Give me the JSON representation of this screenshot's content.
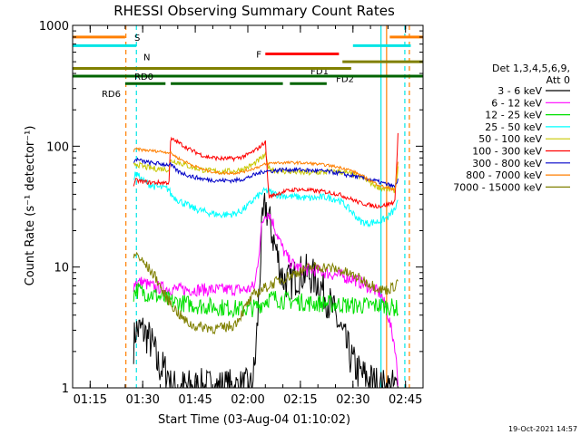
{
  "chart_data": {
    "type": "line",
    "title": "RHESSI Observing Summary Count Rates",
    "xlabel": "Start Time (03-Aug-04 01:10:02)",
    "ylabel": "Count Rate (s⁻¹ detector⁻¹)",
    "y_scale": "log",
    "ylim": [
      1,
      1000
    ],
    "xlim_minutes_after_0110": [
      0,
      100
    ],
    "x_tick_labels": [
      "01:15",
      "01:30",
      "01:45",
      "02:00",
      "02:15",
      "02:30",
      "02:45"
    ],
    "x_tick_minutes_after_0110": [
      5,
      20,
      35,
      50,
      65,
      80,
      95
    ],
    "y_tick_labels": [
      "1",
      "10",
      "100",
      "1000"
    ],
    "y_tick_values": [
      1,
      10,
      100,
      1000
    ],
    "grid": false,
    "legend_position": "right",
    "legend_header": [
      "Det 1,3,4,5,6,9,",
      "Att 0"
    ],
    "footer_date": "19-Oct-2021 14:57",
    "vertical_lines": [
      {
        "x": 15.2,
        "color": "#ff7f00",
        "style": "dashed"
      },
      {
        "x": 18.2,
        "color": "#00e5e5",
        "style": "dashed"
      },
      {
        "x": 88.0,
        "color": "#00e5e5",
        "style": "solid"
      },
      {
        "x": 89.6,
        "color": "#ff7f00",
        "style": "solid"
      },
      {
        "x": 96.1,
        "color": "#ff7f00",
        "style": "dashed"
      },
      {
        "x": 94.8,
        "color": "#00e5e5",
        "style": "dashed"
      }
    ],
    "flag_bars": [
      {
        "label": "S",
        "color": "#ff7f00",
        "y": 800,
        "segments": [
          [
            0,
            15.0
          ],
          [
            90.5,
            100
          ]
        ]
      },
      {
        "label": "N",
        "color": "#00e5e5",
        "y": 680,
        "segments": [
          [
            0,
            18.2
          ],
          [
            80.0,
            96.5
          ]
        ]
      },
      {
        "label": "F",
        "color": "#ff0000",
        "y": 580,
        "segments": [
          [
            55.0,
            76.0
          ]
        ]
      },
      {
        "label": "FD1",
        "color": "#808000",
        "y": 500,
        "segments": [
          [
            77.0,
            100
          ]
        ]
      },
      {
        "label": "FD2",
        "color": "#808000",
        "y": 440,
        "segments": [
          [
            0,
            79.5
          ]
        ]
      },
      {
        "label": "RD0",
        "color": "#006400",
        "y": 380,
        "segments": [
          [
            0,
            100
          ]
        ]
      },
      {
        "label": "RD6",
        "color": "#006400",
        "y": 330,
        "segments": [
          [
            15.0,
            26.5
          ],
          [
            28.0,
            60.0
          ],
          [
            62.0,
            72.5
          ]
        ]
      }
    ],
    "gaps": [
      [
        0,
        17.4
      ],
      [
        93.5,
        100
      ]
    ],
    "series": [
      {
        "name": "3 - 6 keV",
        "color": "#000000",
        "x": [
          17.4,
          18,
          20,
          22,
          23.5,
          24,
          26,
          27.5,
          28,
          30,
          31,
          32,
          33,
          34,
          35,
          36,
          38,
          40,
          42,
          44,
          46,
          47,
          48,
          49,
          50,
          51,
          52,
          53,
          54,
          55,
          56,
          58,
          60,
          62,
          64,
          66,
          68,
          70,
          72,
          74,
          76,
          78,
          80,
          82,
          84,
          86,
          88,
          90,
          91,
          92,
          93
        ],
        "values": [
          2.3,
          3,
          3,
          2.5,
          2.0,
          1.6,
          1.4,
          1.3,
          1.0,
          1.0,
          1.0,
          1.0,
          1.0,
          1.0,
          1.0,
          1.0,
          1.0,
          1.0,
          1.0,
          1.0,
          1.0,
          1.0,
          1.0,
          1.0,
          1.0,
          1.0,
          1.5,
          4.5,
          20,
          33,
          25,
          14,
          8,
          7.5,
          8.5,
          9,
          8.5,
          7.5,
          6,
          4.5,
          3.3,
          2.3,
          1.6,
          1.3,
          1.2,
          1.1,
          1.0,
          1.0,
          1.0,
          1.0,
          1.0
        ]
      },
      {
        "name": "6 - 12 keV",
        "color": "#ff00ff",
        "x": [
          17.4,
          18,
          20,
          22,
          24,
          26,
          28,
          32,
          36,
          40,
          44,
          48,
          50,
          52,
          53,
          54,
          55,
          56,
          57,
          58,
          60,
          62,
          64,
          66,
          68,
          70,
          72,
          76,
          80,
          84,
          88,
          90,
          92,
          93
        ],
        "values": [
          7.0,
          7.5,
          7.5,
          7.0,
          6.8,
          6.7,
          6.6,
          6.5,
          6.5,
          6.5,
          6.5,
          6.5,
          6.5,
          7,
          12,
          22,
          28,
          28,
          24,
          20,
          14,
          11,
          10,
          9.5,
          9.5,
          9.3,
          9,
          8.5,
          8,
          7,
          6,
          4,
          2.2,
          1.0
        ]
      },
      {
        "name": "12 - 25 keV",
        "color": "#00e000",
        "x": [
          17.4,
          18,
          20,
          22,
          24,
          26,
          28,
          32,
          36,
          40,
          44,
          48,
          50,
          52,
          54,
          55,
          56,
          58,
          60,
          64,
          68,
          72,
          76,
          80,
          84,
          88,
          90,
          92,
          93
        ],
        "values": [
          6.0,
          6.5,
          6.2,
          6.0,
          5.8,
          5.5,
          5.2,
          5.0,
          4.8,
          4.7,
          4.6,
          4.5,
          4.5,
          4.6,
          5,
          5.3,
          5.5,
          5.5,
          5.3,
          5.2,
          5.0,
          5.0,
          4.9,
          4.8,
          4.8,
          4.8,
          4.7,
          4.6,
          4.5
        ]
      },
      {
        "name": "25 - 50 keV",
        "color": "#00ffff",
        "x": [
          17.4,
          18,
          19,
          20,
          22,
          24,
          26,
          27.5,
          28,
          30,
          34,
          38,
          42,
          46,
          48,
          50,
          52,
          54,
          55,
          56,
          58,
          60,
          64,
          68,
          72,
          76,
          78,
          80,
          82,
          84,
          86,
          88,
          90,
          92,
          93
        ],
        "values": [
          52,
          60,
          56,
          52,
          48,
          46,
          45,
          44,
          40,
          36,
          31,
          28.5,
          27,
          27.5,
          29,
          32,
          37,
          41,
          43,
          42,
          40,
          39,
          38,
          37,
          38,
          36,
          32,
          28,
          24,
          23,
          23.5,
          24,
          26,
          30,
          35
        ]
      },
      {
        "name": "50 - 100 keV",
        "color": "#c8c800",
        "x": [
          17.4,
          18,
          20,
          22,
          24,
          26,
          27.5,
          28,
          30,
          34,
          38,
          42,
          46,
          48,
          50,
          52,
          54,
          55,
          56,
          58,
          60,
          64,
          68,
          72,
          76,
          78,
          80,
          82,
          84,
          86,
          88,
          90,
          92,
          93
        ],
        "values": [
          68,
          72,
          68,
          66,
          65,
          65,
          64,
          76,
          74,
          67,
          63,
          62,
          62,
          64,
          67,
          72,
          80,
          84,
          66,
          63,
          62,
          61,
          60,
          61,
          62,
          60,
          58,
          56,
          52,
          48,
          45,
          44,
          43,
          70
        ]
      },
      {
        "name": "100 - 300 keV",
        "color": "#ff0000",
        "x": [
          17.4,
          18,
          20,
          22,
          24,
          26,
          27.5,
          28,
          30,
          34,
          38,
          42,
          46,
          48,
          50,
          52,
          54,
          55,
          56,
          58,
          60,
          64,
          68,
          72,
          76,
          78,
          80,
          82,
          84,
          86,
          88,
          90,
          92,
          93
        ],
        "values": [
          48,
          52,
          51,
          50,
          50,
          50,
          50,
          115,
          108,
          92,
          82,
          79,
          79,
          81,
          85,
          92,
          102,
          110,
          38,
          40,
          42,
          44,
          43,
          42,
          40,
          38,
          36,
          34,
          33,
          32,
          32,
          33,
          35,
          160
        ]
      },
      {
        "name": "300 - 800 keV",
        "color": "#0000c8",
        "x": [
          17.4,
          18,
          20,
          22,
          24,
          26,
          28,
          30,
          34,
          38,
          42,
          46,
          48,
          50,
          52,
          54,
          55,
          56,
          58,
          60,
          64,
          68,
          72,
          76,
          78,
          80,
          82,
          84,
          86,
          88,
          90,
          92,
          93
        ],
        "values": [
          72,
          78,
          75,
          73,
          72,
          71,
          70,
          62,
          56,
          53,
          52,
          52,
          53,
          55,
          58,
          61,
          63,
          62,
          63,
          64,
          64,
          63,
          62,
          60,
          58,
          57,
          55,
          54,
          52,
          50,
          48,
          46,
          55
        ]
      },
      {
        "name": "800 - 7000 keV",
        "color": "#ff7f00",
        "x": [
          17.4,
          18,
          20,
          22,
          24,
          26,
          28,
          30,
          34,
          38,
          42,
          46,
          48,
          50,
          52,
          54,
          55,
          56,
          58,
          60,
          64,
          68,
          72,
          76,
          78,
          80,
          82,
          84,
          86,
          88,
          90,
          92,
          93
        ],
        "values": [
          90,
          95,
          93,
          92,
          91,
          90,
          88,
          80,
          70,
          63,
          60,
          60,
          61,
          63,
          66,
          69,
          71,
          72,
          73,
          73,
          73,
          72,
          70,
          67,
          65,
          62,
          58,
          54,
          50,
          47,
          45,
          44,
          80
        ]
      },
      {
        "name": "7000 - 15000 keV",
        "color": "#808000",
        "x": [
          17.4,
          18,
          20,
          22,
          24,
          26,
          28,
          30,
          32,
          34,
          36,
          38,
          40,
          42,
          44,
          46,
          48,
          50,
          52,
          54,
          56,
          58,
          60,
          64,
          68,
          72,
          76,
          80,
          84,
          86,
          88,
          90,
          92,
          93
        ],
        "values": [
          12,
          13,
          11,
          9.5,
          8,
          6,
          5,
          4.2,
          3.6,
          3.3,
          3.2,
          3.2,
          3.1,
          3.1,
          3.2,
          3.3,
          4,
          5,
          6,
          6.5,
          7,
          7.5,
          8,
          9,
          10,
          10,
          9.5,
          8.5,
          7.5,
          7,
          6.5,
          6.5,
          7,
          8
        ]
      }
    ]
  }
}
